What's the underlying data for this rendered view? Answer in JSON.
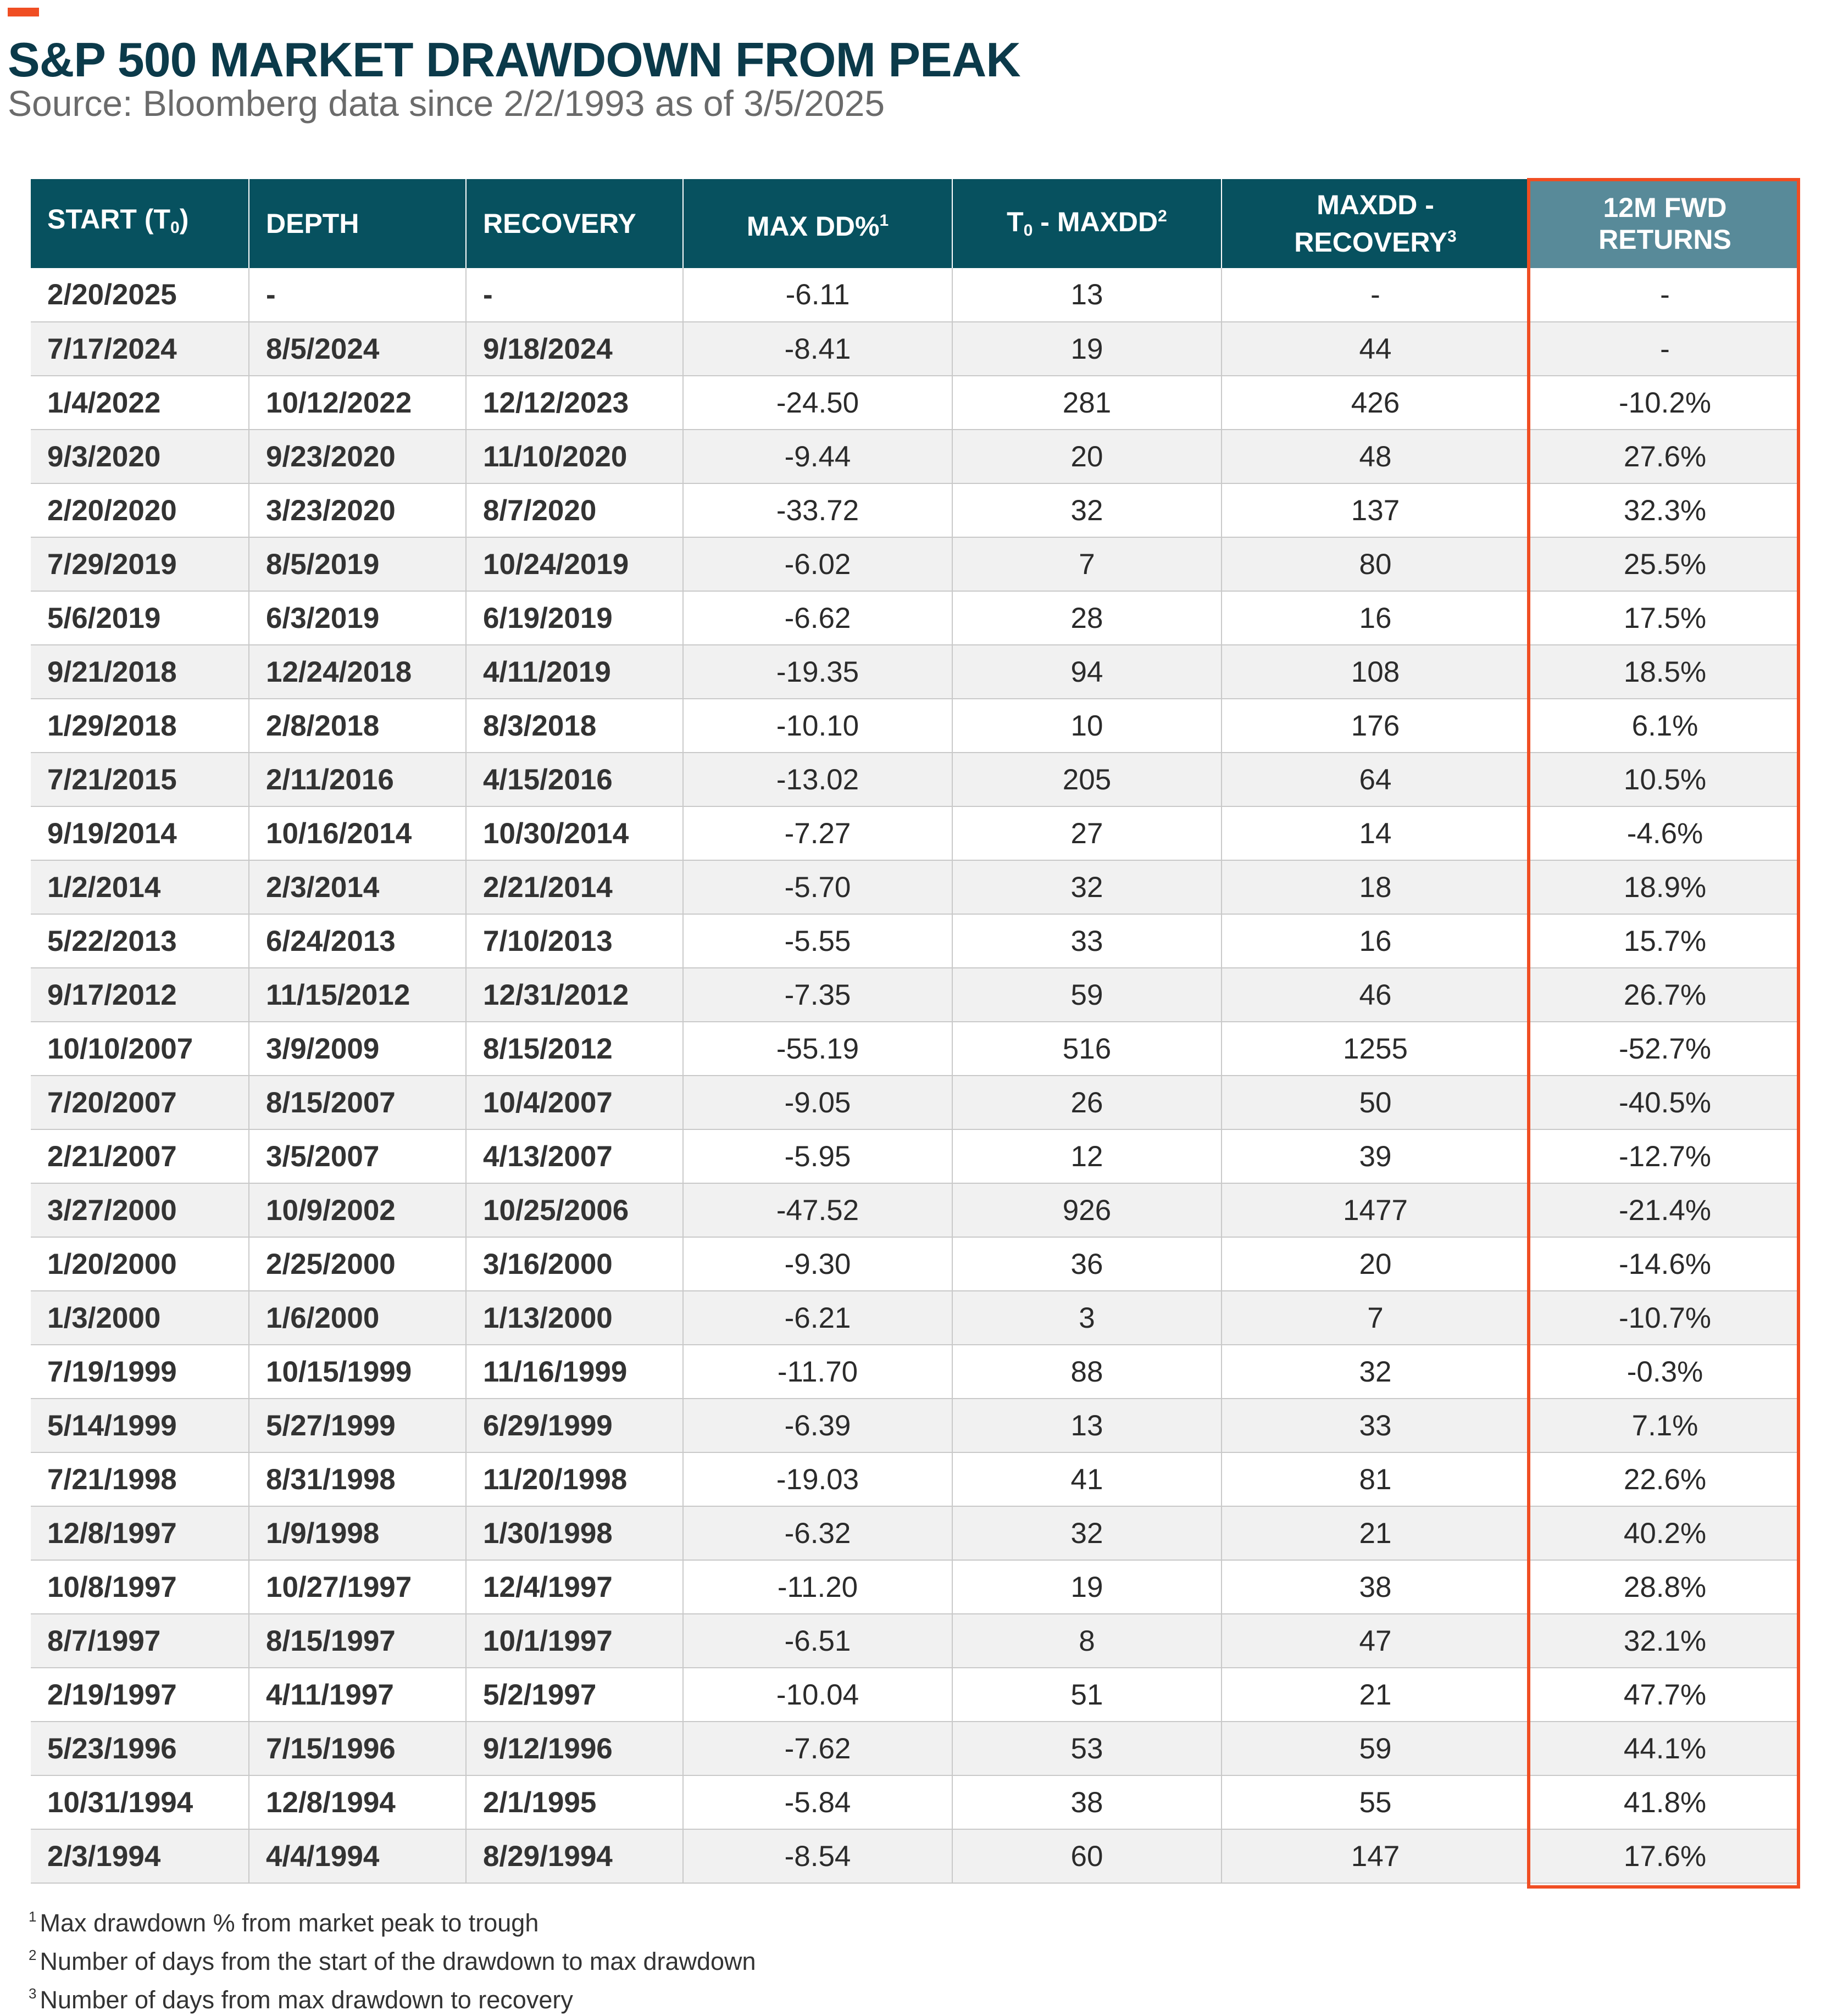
{
  "header": {
    "title": "S&P 500 MARKET DRAWDOWN FROM PEAK",
    "subtitle": "Source: Bloomberg data since 2/2/1993 as of 3/5/2025"
  },
  "colors": {
    "accent": "#f04e23",
    "header_bg": "#07515f",
    "highlight_header_bg": "#588a99",
    "title_color": "#0b3a4a"
  },
  "chart_data": {
    "type": "table",
    "title": "S&P 500 MARKET DRAWDOWN FROM PEAK",
    "columns": {
      "start": {
        "label": "START (T",
        "sub": "0",
        "close": ")"
      },
      "depth": {
        "label": "DEPTH"
      },
      "recovery": {
        "label": "RECOVERY"
      },
      "max_dd": {
        "label": "MAX DD%",
        "sup": "1"
      },
      "t0_maxdd": {
        "pre": "T",
        "sub": "0",
        "label": " - MAXDD",
        "sup": "2"
      },
      "maxdd_recovery": {
        "line1": "MAXDD -",
        "line2": "RECOVERY",
        "sup": "3"
      },
      "fwd_returns": {
        "line1": "12M FWD",
        "line2": "RETURNS"
      }
    },
    "highlighted_column": "fwd_returns",
    "rows": [
      [
        "2/20/2025",
        "-",
        "-",
        "-6.11",
        "13",
        "-",
        "-"
      ],
      [
        "7/17/2024",
        "8/5/2024",
        "9/18/2024",
        "-8.41",
        "19",
        "44",
        "-"
      ],
      [
        "1/4/2022",
        "10/12/2022",
        "12/12/2023",
        "-24.50",
        "281",
        "426",
        "-10.2%"
      ],
      [
        "9/3/2020",
        "9/23/2020",
        "11/10/2020",
        "-9.44",
        "20",
        "48",
        "27.6%"
      ],
      [
        "2/20/2020",
        "3/23/2020",
        "8/7/2020",
        "-33.72",
        "32",
        "137",
        "32.3%"
      ],
      [
        "7/29/2019",
        "8/5/2019",
        "10/24/2019",
        "-6.02",
        "7",
        "80",
        "25.5%"
      ],
      [
        "5/6/2019",
        "6/3/2019",
        "6/19/2019",
        "-6.62",
        "28",
        "16",
        "17.5%"
      ],
      [
        "9/21/2018",
        "12/24/2018",
        "4/11/2019",
        "-19.35",
        "94",
        "108",
        "18.5%"
      ],
      [
        "1/29/2018",
        "2/8/2018",
        "8/3/2018",
        "-10.10",
        "10",
        "176",
        "6.1%"
      ],
      [
        "7/21/2015",
        "2/11/2016",
        "4/15/2016",
        "-13.02",
        "205",
        "64",
        "10.5%"
      ],
      [
        "9/19/2014",
        "10/16/2014",
        "10/30/2014",
        "-7.27",
        "27",
        "14",
        "-4.6%"
      ],
      [
        "1/2/2014",
        "2/3/2014",
        "2/21/2014",
        "-5.70",
        "32",
        "18",
        "18.9%"
      ],
      [
        "5/22/2013",
        "6/24/2013",
        "7/10/2013",
        "-5.55",
        "33",
        "16",
        "15.7%"
      ],
      [
        "9/17/2012",
        "11/15/2012",
        "12/31/2012",
        "-7.35",
        "59",
        "46",
        "26.7%"
      ],
      [
        "10/10/2007",
        "3/9/2009",
        "8/15/2012",
        "-55.19",
        "516",
        "1255",
        "-52.7%"
      ],
      [
        "7/20/2007",
        "8/15/2007",
        "10/4/2007",
        "-9.05",
        "26",
        "50",
        "-40.5%"
      ],
      [
        "2/21/2007",
        "3/5/2007",
        "4/13/2007",
        "-5.95",
        "12",
        "39",
        "-12.7%"
      ],
      [
        "3/27/2000",
        "10/9/2002",
        "10/25/2006",
        "-47.52",
        "926",
        "1477",
        "-21.4%"
      ],
      [
        "1/20/2000",
        "2/25/2000",
        "3/16/2000",
        "-9.30",
        "36",
        "20",
        "-14.6%"
      ],
      [
        "1/3/2000",
        "1/6/2000",
        "1/13/2000",
        "-6.21",
        "3",
        "7",
        "-10.7%"
      ],
      [
        "7/19/1999",
        "10/15/1999",
        "11/16/1999",
        "-11.70",
        "88",
        "32",
        "-0.3%"
      ],
      [
        "5/14/1999",
        "5/27/1999",
        "6/29/1999",
        "-6.39",
        "13",
        "33",
        "7.1%"
      ],
      [
        "7/21/1998",
        "8/31/1998",
        "11/20/1998",
        "-19.03",
        "41",
        "81",
        "22.6%"
      ],
      [
        "12/8/1997",
        "1/9/1998",
        "1/30/1998",
        "-6.32",
        "32",
        "21",
        "40.2%"
      ],
      [
        "10/8/1997",
        "10/27/1997",
        "12/4/1997",
        "-11.20",
        "19",
        "38",
        "28.8%"
      ],
      [
        "8/7/1997",
        "8/15/1997",
        "10/1/1997",
        "-6.51",
        "8",
        "47",
        "32.1%"
      ],
      [
        "2/19/1997",
        "4/11/1997",
        "5/2/1997",
        "-10.04",
        "51",
        "21",
        "47.7%"
      ],
      [
        "5/23/1996",
        "7/15/1996",
        "9/12/1996",
        "-7.62",
        "53",
        "59",
        "44.1%"
      ],
      [
        "10/31/1994",
        "12/8/1994",
        "2/1/1995",
        "-5.84",
        "38",
        "55",
        "41.8%"
      ],
      [
        "2/3/1994",
        "4/4/1994",
        "8/29/1994",
        "-8.54",
        "60",
        "147",
        "17.6%"
      ]
    ]
  },
  "footnotes": [
    {
      "mark": "1",
      "text": "Max drawdown % from market peak to trough"
    },
    {
      "mark": "2",
      "text": "Number of days from the start of the drawdown to max drawdown"
    },
    {
      "mark": "3",
      "text": "Number of days from max drawdown to recovery"
    }
  ]
}
